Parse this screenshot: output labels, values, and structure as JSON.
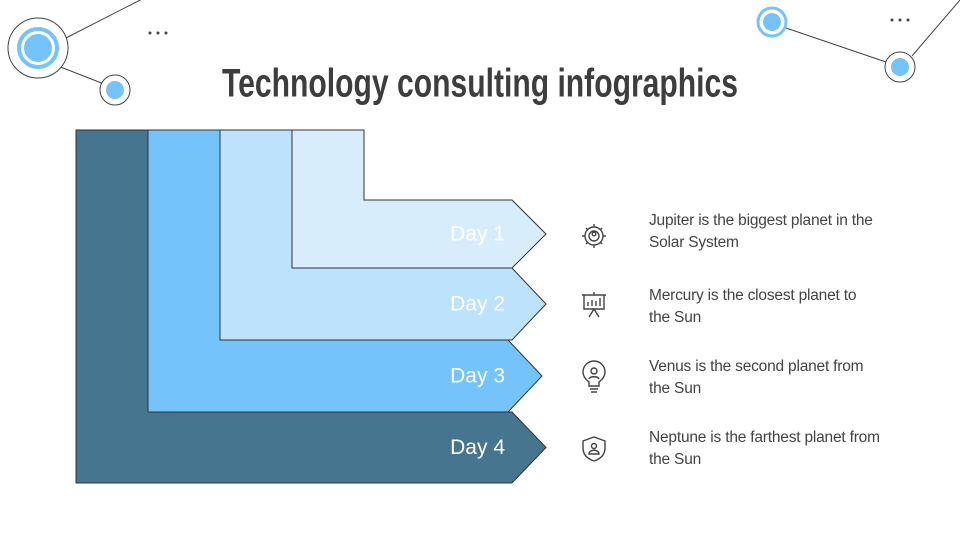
{
  "header": {
    "title": "Technology consulting infographics"
  },
  "steps": [
    {
      "label": "Day 1",
      "text": "Jupiter is the biggest planet in the Solar System"
    },
    {
      "label": "Day 2",
      "text": "Mercury is the closest planet to the Sun"
    },
    {
      "label": "Day 3",
      "text": "Venus is the second planet from the Sun"
    },
    {
      "label": "Day 4",
      "text": "Neptune is the farthest planet from the Sun"
    }
  ]
}
